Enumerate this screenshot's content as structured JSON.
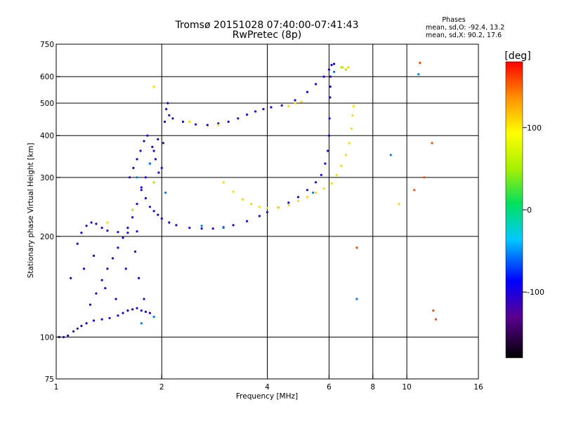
{
  "chart_data": {
    "type": "scatter",
    "title": "Tromsø 20151028 07:40:00-07:41:43",
    "subtitle": "RwPretec (8p)",
    "stats": {
      "heading": "Phases",
      "o_line": "mean, sd,O: -92.4, 13.2",
      "x_line": "mean, sd,X:  90.2, 17.6"
    },
    "xlabel": "Frequency [MHz]",
    "ylabel": "Stationary phase Virtual Height [km]",
    "xscale": "log",
    "yscale": "log",
    "xlim": [
      1,
      16
    ],
    "ylim": [
      75,
      750
    ],
    "x_ticks": [
      1,
      2,
      4,
      6,
      8,
      10,
      16
    ],
    "y_ticks": [
      75,
      100,
      200,
      300,
      400,
      500,
      600,
      750
    ],
    "x_gridlines": [
      2,
      4,
      6,
      8,
      10
    ],
    "y_gridlines": [
      100,
      200,
      300,
      400,
      500,
      600
    ],
    "grid": true,
    "colorbar": {
      "title": "[deg]",
      "range": [
        -180,
        180
      ],
      "tick_values": [
        100,
        0,
        -100
      ],
      "tick_labels": [
        "100",
        "0",
        "-100"
      ]
    },
    "series": [
      {
        "phase": -100,
        "points": [
          [
            1.02,
            100
          ],
          [
            1.05,
            100
          ],
          [
            1.08,
            101
          ],
          [
            1.12,
            104
          ],
          [
            1.15,
            106
          ],
          [
            1.18,
            108
          ],
          [
            1.22,
            110
          ],
          [
            1.28,
            112
          ],
          [
            1.35,
            113
          ],
          [
            1.42,
            114
          ],
          [
            1.5,
            116
          ],
          [
            1.55,
            118
          ],
          [
            1.6,
            120
          ],
          [
            1.65,
            121
          ],
          [
            1.7,
            122
          ],
          [
            1.75,
            120
          ],
          [
            1.8,
            119
          ],
          [
            1.85,
            118
          ],
          [
            1.25,
            125
          ],
          [
            1.3,
            135
          ],
          [
            1.35,
            148
          ],
          [
            1.4,
            160
          ],
          [
            1.45,
            172
          ],
          [
            1.5,
            185
          ],
          [
            1.55,
            198
          ],
          [
            1.6,
            212
          ],
          [
            1.65,
            228
          ],
          [
            1.7,
            250
          ],
          [
            1.75,
            275
          ],
          [
            1.8,
            300
          ],
          [
            1.85,
            330
          ],
          [
            1.9,
            360
          ],
          [
            1.95,
            390
          ],
          [
            1.15,
            190
          ],
          [
            1.18,
            205
          ],
          [
            1.22,
            215
          ],
          [
            1.26,
            220
          ],
          [
            1.3,
            218
          ],
          [
            1.35,
            212
          ],
          [
            1.4,
            208
          ],
          [
            1.5,
            206
          ],
          [
            1.6,
            205
          ],
          [
            1.7,
            207
          ],
          [
            1.62,
            300
          ],
          [
            1.66,
            320
          ],
          [
            1.7,
            340
          ],
          [
            1.74,
            360
          ],
          [
            1.78,
            385
          ],
          [
            1.82,
            400
          ],
          [
            1.88,
            370
          ],
          [
            1.92,
            340
          ],
          [
            1.96,
            310
          ],
          [
            2.0,
            320
          ],
          [
            2.02,
            380
          ],
          [
            2.04,
            440
          ],
          [
            2.06,
            480
          ],
          [
            2.08,
            500
          ],
          [
            2.1,
            460
          ],
          [
            1.75,
            280
          ],
          [
            1.8,
            260
          ],
          [
            1.85,
            245
          ],
          [
            1.9,
            238
          ],
          [
            1.95,
            232
          ],
          [
            2.0,
            226
          ],
          [
            2.1,
            220
          ],
          [
            2.2,
            216
          ],
          [
            2.4,
            212
          ],
          [
            2.6,
            211
          ],
          [
            2.8,
            211
          ],
          [
            3.0,
            213
          ],
          [
            3.2,
            216
          ],
          [
            3.5,
            222
          ],
          [
            3.8,
            230
          ],
          [
            4.0,
            236
          ],
          [
            4.3,
            244
          ],
          [
            4.6,
            252
          ],
          [
            4.9,
            262
          ],
          [
            5.2,
            275
          ],
          [
            5.5,
            290
          ],
          [
            5.7,
            305
          ],
          [
            5.85,
            330
          ],
          [
            5.95,
            360
          ],
          [
            6.0,
            400
          ],
          [
            6.02,
            450
          ],
          [
            6.04,
            520
          ],
          [
            6.05,
            560
          ],
          [
            6.06,
            600
          ],
          [
            2.15,
            450
          ],
          [
            2.3,
            440
          ],
          [
            2.5,
            432
          ],
          [
            2.7,
            430
          ],
          [
            2.9,
            435
          ],
          [
            3.1,
            440
          ],
          [
            3.3,
            450
          ],
          [
            3.5,
            462
          ],
          [
            3.7,
            472
          ],
          [
            3.9,
            480
          ],
          [
            4.1,
            486
          ],
          [
            4.4,
            492
          ],
          [
            4.8,
            510
          ],
          [
            5.2,
            540
          ],
          [
            5.5,
            570
          ],
          [
            5.8,
            600
          ],
          [
            6.0,
            630
          ],
          [
            6.1,
            650
          ],
          [
            6.2,
            655
          ],
          [
            1.1,
            150
          ],
          [
            1.2,
            160
          ],
          [
            1.28,
            175
          ],
          [
            1.38,
            140
          ],
          [
            1.48,
            130
          ],
          [
            1.58,
            160
          ],
          [
            1.68,
            180
          ],
          [
            1.72,
            150
          ],
          [
            1.78,
            130
          ]
        ]
      },
      {
        "phase": -60,
        "points": [
          [
            1.7,
            300
          ],
          [
            1.85,
            330
          ],
          [
            2.05,
            270
          ],
          [
            2.6,
            215
          ],
          [
            3.0,
            212
          ],
          [
            5.4,
            270
          ],
          [
            6.2,
            620
          ],
          [
            10.8,
            610
          ],
          [
            7.2,
            130
          ],
          [
            9.0,
            350
          ],
          [
            1.75,
            110
          ],
          [
            1.9,
            115
          ]
        ]
      },
      {
        "phase": 110,
        "points": [
          [
            3.0,
            290
          ],
          [
            3.2,
            272
          ],
          [
            3.4,
            258
          ],
          [
            3.6,
            250
          ],
          [
            3.8,
            245
          ],
          [
            4.0,
            243
          ],
          [
            4.3,
            244
          ],
          [
            4.6,
            248
          ],
          [
            4.9,
            255
          ],
          [
            5.2,
            262
          ],
          [
            5.5,
            270
          ],
          [
            5.8,
            278
          ],
          [
            6.1,
            288
          ],
          [
            6.3,
            305
          ],
          [
            6.5,
            325
          ],
          [
            6.7,
            350
          ],
          [
            6.85,
            380
          ],
          [
            6.95,
            420
          ],
          [
            7.0,
            460
          ],
          [
            7.05,
            490
          ],
          [
            2.4,
            440
          ],
          [
            2.9,
            430
          ],
          [
            4.6,
            490
          ],
          [
            4.8,
            500
          ],
          [
            5.0,
            505
          ],
          [
            1.4,
            220
          ],
          [
            1.9,
            560
          ],
          [
            6.5,
            640
          ],
          [
            6.8,
            640
          ],
          [
            9.5,
            250
          ]
        ]
      },
      {
        "phase": 50,
        "points": [
          [
            6.55,
            640
          ],
          [
            6.7,
            630
          ],
          [
            1.9,
            290
          ],
          [
            1.65,
            240
          ]
        ]
      },
      {
        "phase": 160,
        "points": [
          [
            10.9,
            660
          ],
          [
            11.8,
            380
          ],
          [
            11.2,
            300
          ],
          [
            11.9,
            120
          ],
          [
            12.1,
            113
          ],
          [
            10.5,
            275
          ],
          [
            7.2,
            185
          ]
        ]
      }
    ]
  }
}
